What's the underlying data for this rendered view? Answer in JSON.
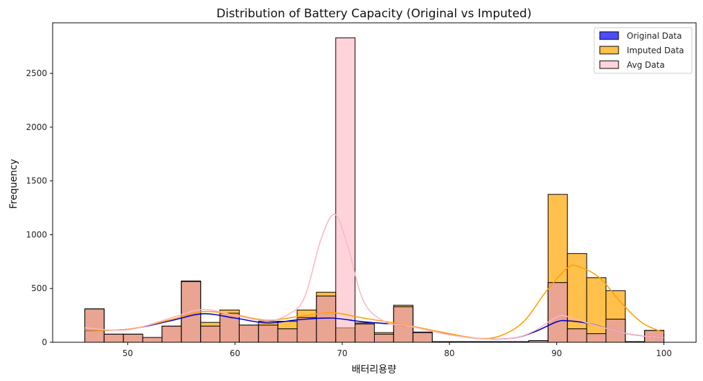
{
  "chart_data": {
    "type": "histogram",
    "title": "Distribution of Battery Capacity (Original vs Imputed)",
    "xlabel": "배터리용량",
    "ylabel": "Frequency",
    "xlim": [
      43,
      103
    ],
    "ylim": [
      0,
      2970
    ],
    "xticks": [
      50,
      60,
      70,
      80,
      90,
      100
    ],
    "yticks": [
      0,
      500,
      1000,
      1500,
      2000,
      2500
    ],
    "legend_position": "top-right",
    "bins": [
      [
        46.0,
        47.8
      ],
      [
        47.8,
        49.6
      ],
      [
        49.6,
        51.4
      ],
      [
        51.4,
        53.2
      ],
      [
        53.2,
        55.0
      ],
      [
        55.0,
        56.8
      ],
      [
        56.8,
        58.6
      ],
      [
        58.6,
        60.4
      ],
      [
        60.4,
        62.2
      ],
      [
        62.2,
        64.0
      ],
      [
        64.0,
        65.8
      ],
      [
        65.8,
        67.6
      ],
      [
        67.6,
        69.4
      ],
      [
        69.4,
        71.2
      ],
      [
        71.2,
        73.0
      ],
      [
        73.0,
        74.8
      ],
      [
        74.8,
        76.6
      ],
      [
        76.6,
        78.4
      ],
      [
        78.4,
        80.2
      ],
      [
        80.2,
        82.0
      ],
      [
        82.0,
        83.8
      ],
      [
        83.8,
        85.6
      ],
      [
        85.6,
        87.4
      ],
      [
        87.4,
        89.2
      ],
      [
        89.2,
        91.0
      ],
      [
        91.0,
        92.8
      ],
      [
        92.8,
        94.6
      ],
      [
        94.6,
        96.4
      ],
      [
        96.4,
        98.2
      ],
      [
        98.2,
        100.0
      ]
    ],
    "series": [
      {
        "name": "Original Data",
        "color": "#0000ff",
        "kde_color": "#0000cc",
        "values": [
          310,
          75,
          75,
          45,
          150,
          565,
          150,
          270,
          160,
          160,
          125,
          230,
          430,
          130,
          170,
          75,
          330,
          90,
          5,
          5,
          5,
          5,
          5,
          15,
          555,
          125,
          80,
          215,
          5,
          110
        ],
        "kde": [
          [
            46,
            112
          ],
          [
            50,
            120
          ],
          [
            54,
            200
          ],
          [
            57,
            265
          ],
          [
            60,
            225
          ],
          [
            63,
            180
          ],
          [
            66,
            210
          ],
          [
            69,
            225
          ],
          [
            72,
            190
          ],
          [
            76,
            155
          ],
          [
            80,
            72
          ],
          [
            83,
            33
          ],
          [
            86,
            40
          ],
          [
            88,
            100
          ],
          [
            90,
            190
          ],
          [
            91,
            200
          ],
          [
            93,
            175
          ],
          [
            95,
            120
          ],
          [
            97,
            72
          ],
          [
            100,
            42
          ]
        ]
      },
      {
        "name": "Imputed Data",
        "color": "#ffa500",
        "kde_color": "#ffa000",
        "values": [
          310,
          75,
          75,
          45,
          150,
          570,
          185,
          300,
          160,
          195,
          195,
          300,
          465,
          135,
          180,
          90,
          345,
          95,
          5,
          5,
          5,
          5,
          5,
          15,
          1375,
          825,
          600,
          480,
          5,
          110
        ],
        "kde": [
          [
            46,
            115
          ],
          [
            50,
            120
          ],
          [
            54,
            210
          ],
          [
            57,
            285
          ],
          [
            60,
            255
          ],
          [
            63,
            205
          ],
          [
            66,
            240
          ],
          [
            69,
            275
          ],
          [
            72,
            225
          ],
          [
            76,
            160
          ],
          [
            80,
            80
          ],
          [
            83,
            35
          ],
          [
            85,
            70
          ],
          [
            87,
            200
          ],
          [
            89,
            470
          ],
          [
            91,
            690
          ],
          [
            92,
            705
          ],
          [
            94,
            600
          ],
          [
            96,
            370
          ],
          [
            98,
            180
          ],
          [
            100,
            90
          ]
        ]
      },
      {
        "name": "Avg Data",
        "color": "#ffb6c1",
        "kde_color": "#ffb6c1",
        "values": [
          310,
          75,
          75,
          45,
          150,
          565,
          150,
          270,
          160,
          160,
          125,
          230,
          430,
          2830,
          170,
          75,
          330,
          90,
          5,
          5,
          5,
          5,
          5,
          15,
          555,
          125,
          80,
          215,
          5,
          110
        ],
        "kde": [
          [
            46,
            135
          ],
          [
            50,
            115
          ],
          [
            54,
            225
          ],
          [
            57,
            305
          ],
          [
            60,
            250
          ],
          [
            63,
            200
          ],
          [
            65,
            260
          ],
          [
            66.5,
            420
          ],
          [
            68,
            950
          ],
          [
            69.3,
            1190
          ],
          [
            70.5,
            900
          ],
          [
            72,
            380
          ],
          [
            74,
            190
          ],
          [
            76,
            155
          ],
          [
            80,
            70
          ],
          [
            83,
            33
          ],
          [
            86,
            40
          ],
          [
            88,
            110
          ],
          [
            90,
            235
          ],
          [
            91,
            240
          ],
          [
            93,
            175
          ],
          [
            95,
            120
          ],
          [
            97,
            72
          ],
          [
            100,
            42
          ]
        ]
      }
    ]
  }
}
